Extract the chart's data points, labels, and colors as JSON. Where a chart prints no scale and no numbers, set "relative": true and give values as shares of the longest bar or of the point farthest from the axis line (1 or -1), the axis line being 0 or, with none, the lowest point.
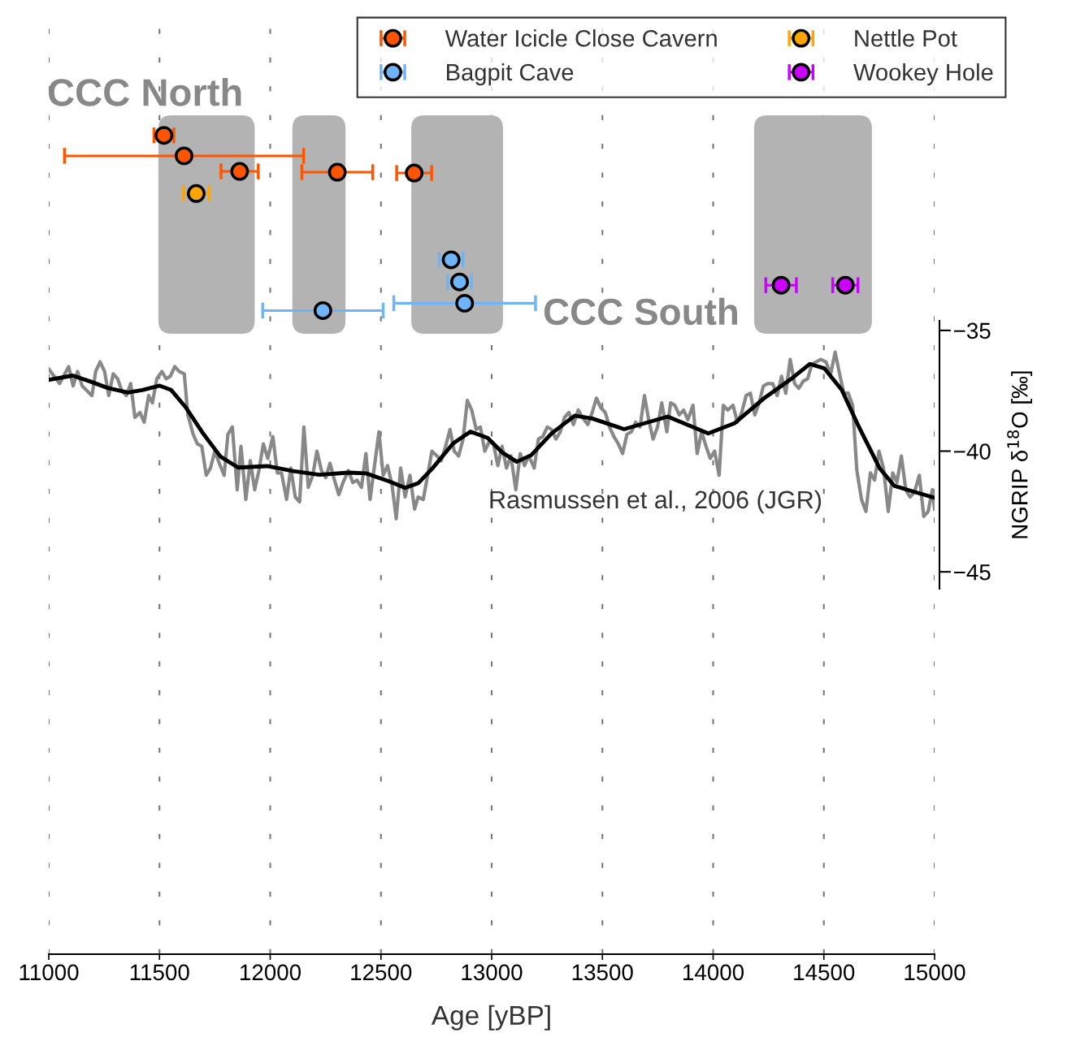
{
  "chart_data": [
    {
      "type": "scatter",
      "relative": true,
      "marker": "circle",
      "grid": "x",
      "legend": "top right",
      "xlabel": "Age [yBP]",
      "xlim": [
        11000,
        15000
      ],
      "xticks": [
        11000,
        11500,
        12000,
        12500,
        13000,
        13500,
        14000,
        14500,
        15000
      ],
      "bands": [
        {
          "axis": "x",
          "from": 11495,
          "to": 11930,
          "color": "#b3b3b3"
        },
        {
          "axis": "x",
          "from": 12100,
          "to": 12340,
          "color": "#b3b3b3"
        },
        {
          "axis": "x",
          "from": 12637,
          "to": 13051,
          "color": "#b3b3b3"
        },
        {
          "axis": "x",
          "from": 14185,
          "to": 14717,
          "color": "#b3b3b3"
        }
      ],
      "annotations": [
        "CCC North",
        "CCC South"
      ],
      "series": [
        {
          "name": "Water Icicle Close Cavern",
          "color": "#ff5500",
          "x": [
            11520,
            11611,
            11862,
            12303,
            12650
          ],
          "values": [
            1,
            0.975,
            0.956,
            0.955,
            0.954
          ],
          "xerrors": [
            45,
            540,
            84,
            160,
            79
          ]
        },
        {
          "name": "Bagpit Cave",
          "color": "#70b4f8",
          "x": [
            12817,
            12855,
            12878,
            12238
          ],
          "values": [
            0.848,
            0.821,
            0.795,
            0.786
          ],
          "xerrors": [
            54,
            54,
            320,
            272
          ]
        },
        {
          "name": "Nettle Pot",
          "color": "#ffa500",
          "x": [
            11666
          ],
          "values": [
            0.929
          ],
          "xerrors": [
            57
          ]
        },
        {
          "name": "Wookey Hole",
          "color": "#cc00ff",
          "x": [
            14307,
            14597
          ],
          "values": [
            0.817,
            0.817
          ],
          "xerrors": [
            69,
            57
          ]
        }
      ]
    },
    {
      "type": "line",
      "tick_labels": "y",
      "ylabel": "NGRIP δ$^{18}$O [‰]",
      "xlim": [
        11000,
        15000
      ],
      "ylim": [
        -45.7,
        -34.6
      ],
      "yticks": [
        {
          "value": -35,
          "label": "−35"
        },
        {
          "value": -40,
          "label": "−40"
        },
        {
          "value": -45,
          "label": "−45"
        }
      ],
      "annotations": [
        "Rasmussen et al., 2006 (JGR)"
      ],
      "series": [
        {
          "color": "#888888",
          "x": [
            11000,
            11049,
            11090,
            11110,
            11130,
            11151,
            11173,
            11195,
            11212,
            11232,
            11252,
            11271,
            11291,
            11311,
            11330,
            11350,
            11370,
            11389,
            11412,
            11431,
            11451,
            11468,
            11488,
            11511,
            11530,
            11549,
            11569,
            11589,
            11612,
            11628,
            11652,
            11671,
            11691,
            11711,
            11730,
            11750,
            11770,
            11792,
            11809,
            11829,
            11851,
            11868,
            11890,
            11910,
            11930,
            11949,
            11969,
            11989,
            12012,
            12032,
            12051,
            12074,
            12093,
            12113,
            12133,
            12152,
            12172,
            12192,
            12211,
            12231,
            12251,
            12270,
            12290,
            12310,
            12329,
            12353,
            12373,
            12392,
            12412,
            12432,
            12451,
            12471,
            12491,
            12510,
            12530,
            12550,
            12569,
            12589,
            12609,
            12631,
            12652,
            12668,
            12691,
            12711,
            12730,
            12753,
            12772,
            12792,
            12812,
            12831,
            12851,
            12871,
            12890,
            12910,
            12930,
            12949,
            12969,
            12989,
            13008,
            13028,
            13047,
            13067,
            13087,
            13109,
            13129,
            13148,
            13168,
            13192,
            13211,
            13231,
            13251,
            13270,
            13290,
            13310,
            13329,
            13349,
            13369,
            13391,
            13410,
            13434,
            13454,
            13473,
            13493,
            13513,
            13532,
            13552,
            13572,
            13591,
            13611,
            13631,
            13650,
            13670,
            13690,
            13709,
            13729,
            13749,
            13768,
            13791,
            13808,
            13827,
            13847,
            13867,
            13886,
            13909,
            13928,
            13948,
            13968,
            13987,
            14007,
            14027,
            14046,
            14066,
            14090,
            14109,
            14129,
            14149,
            14168,
            14188,
            14208,
            14227,
            14247,
            14269,
            14289,
            14309,
            14328,
            14348,
            14368,
            14387,
            14407,
            14427,
            14446,
            14466,
            14486,
            14509,
            14531,
            14551,
            14571,
            14590,
            14610,
            14630,
            14649,
            14670,
            14690,
            14710,
            14729,
            14749,
            14769,
            14791,
            14811,
            14830,
            14850,
            14870,
            14889,
            14909,
            14931,
            14951,
            14971,
            14990,
            15000
          ],
          "values": [
            -36.6,
            -37.2,
            -36.5,
            -37.3,
            -36.7,
            -37.3,
            -37.5,
            -37.7,
            -36.7,
            -36.3,
            -36.7,
            -37.7,
            -36.8,
            -37.0,
            -37.5,
            -37.7,
            -37.2,
            -38.6,
            -38.4,
            -38.8,
            -37.7,
            -38.0,
            -37.0,
            -36.7,
            -37.0,
            -36.9,
            -36.5,
            -36.7,
            -36.8,
            -38.5,
            -39.3,
            -39.7,
            -39.8,
            -41.0,
            -40.7,
            -40.0,
            -40.5,
            -41.0,
            -39.3,
            -39.0,
            -41.6,
            -39.8,
            -42.0,
            -40.4,
            -41.6,
            -40.8,
            -39.7,
            -40.3,
            -39.4,
            -40.9,
            -40.9,
            -42.0,
            -40.7,
            -41.9,
            -42.1,
            -39.0,
            -41.5,
            -41.0,
            -40.0,
            -40.8,
            -41.1,
            -40.5,
            -41.2,
            -41.8,
            -41.3,
            -40.8,
            -41.3,
            -41.2,
            -41.5,
            -40.1,
            -42.0,
            -40.6,
            -39.2,
            -41.0,
            -40.6,
            -41.4,
            -42.8,
            -40.7,
            -41.9,
            -41.0,
            -42.4,
            -41.9,
            -42.0,
            -41.0,
            -40.0,
            -40.2,
            -40.4,
            -39.8,
            -39.1,
            -40.0,
            -40.2,
            -39.5,
            -37.9,
            -38.3,
            -39.1,
            -39.0,
            -40.0,
            -39.6,
            -39.7,
            -40.6,
            -39.8,
            -40.7,
            -40.2,
            -41.6,
            -40.1,
            -40.6,
            -40.2,
            -40.7,
            -39.5,
            -39.4,
            -39.0,
            -39.1,
            -39.5,
            -39.2,
            -38.6,
            -38.4,
            -38.9,
            -38.3,
            -38.6,
            -38.9,
            -38.4,
            -37.8,
            -38.2,
            -38.4,
            -39.0,
            -39.4,
            -39.7,
            -40.1,
            -39.3,
            -39.2,
            -38.8,
            -39.0,
            -37.7,
            -38.7,
            -39.5,
            -39.0,
            -38.0,
            -39.2,
            -38.0,
            -38.1,
            -38.5,
            -38.3,
            -38.7,
            -38.1,
            -40.1,
            -39.2,
            -39.8,
            -40.3,
            -40.0,
            -41.0,
            -38.1,
            -38.3,
            -38.1,
            -38.8,
            -38.4,
            -37.7,
            -37.6,
            -38.5,
            -38.0,
            -37.3,
            -37.2,
            -37.2,
            -37.7,
            -36.9,
            -37.6,
            -36.2,
            -37.2,
            -37.4,
            -37.1,
            -37.0,
            -36.4,
            -36.3,
            -36.2,
            -36.3,
            -36.8,
            -35.9,
            -36.8,
            -37.6,
            -37.6,
            -38.1,
            -40.8,
            -42.0,
            -42.5,
            -40.9,
            -41.2,
            -40.0,
            -40.7,
            -42.5,
            -40.9,
            -41.3,
            -40.2,
            -41.6,
            -41.9,
            -41.7,
            -41.0,
            -42.7,
            -42.5,
            -41.6,
            -42.4
          ]
        },
        {
          "color": "#000000",
          "x": [
            11000,
            11108,
            11186,
            11265,
            11357,
            11422,
            11501,
            11553,
            11619,
            11697,
            11776,
            11855,
            11986,
            12104,
            12222,
            12353,
            12432,
            12537,
            12609,
            12668,
            12733,
            12825,
            12904,
            12982,
            13047,
            13113,
            13178,
            13270,
            13375,
            13454,
            13598,
            13795,
            13978,
            14096,
            14227,
            14358,
            14437,
            14502,
            14581,
            14660,
            14752,
            14817,
            14909,
            15000
          ],
          "values": [
            -37.05,
            -36.87,
            -37.11,
            -37.38,
            -37.57,
            -37.47,
            -37.29,
            -37.47,
            -38.19,
            -39.27,
            -40.23,
            -40.68,
            -40.62,
            -40.83,
            -40.98,
            -40.89,
            -40.92,
            -41.25,
            -41.52,
            -41.33,
            -40.71,
            -39.69,
            -39.19,
            -39.45,
            -40.05,
            -40.44,
            -40.17,
            -39.27,
            -38.53,
            -38.65,
            -39.09,
            -38.57,
            -39.27,
            -38.85,
            -37.83,
            -36.97,
            -36.39,
            -36.57,
            -37.47,
            -39.03,
            -40.71,
            -41.43,
            -41.69,
            -41.93
          ]
        }
      ]
    }
  ]
}
